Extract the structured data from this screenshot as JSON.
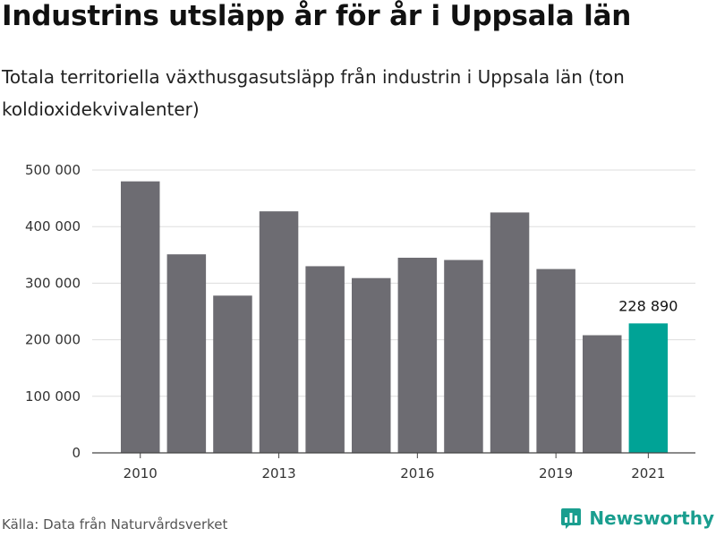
{
  "header": {
    "title": "Industrins utsläpp år för år i Uppsala län",
    "subtitle": "Totala territoriella växthusgasutsläpp från industrin i Uppsala län (ton koldioxidekvivalenter)"
  },
  "footer": {
    "source": "Källa: Data från Naturvårdsverket",
    "brand": "Newsworthy",
    "brand_icon": "bar-chart-logo-icon"
  },
  "colors": {
    "bar": "#6d6c72",
    "highlight": "#00a396",
    "grid": "#dddddd",
    "axis": "#444444",
    "brand": "#1a9e8f"
  },
  "chart_data": {
    "type": "bar",
    "title": "Industrins utsläpp år för år i Uppsala län",
    "xlabel": "",
    "ylabel": "",
    "categories": [
      "2010",
      "2011",
      "2012",
      "2013",
      "2014",
      "2015",
      "2016",
      "2017",
      "2018",
      "2019",
      "2020",
      "2021"
    ],
    "values": [
      480000,
      351000,
      278000,
      427000,
      330000,
      309000,
      345000,
      341000,
      425000,
      325000,
      208000,
      228890
    ],
    "x_tick_labels": [
      "2010",
      "2013",
      "2016",
      "2019",
      "2021"
    ],
    "y_ticks": [
      0,
      100000,
      200000,
      300000,
      400000,
      500000
    ],
    "y_tick_labels": [
      "0",
      "100 000",
      "200 000",
      "300 000",
      "400 000",
      "500 000"
    ],
    "ylim": [
      0,
      500000
    ],
    "grid": true,
    "highlight_category": "2021",
    "annotation": "228 890"
  }
}
